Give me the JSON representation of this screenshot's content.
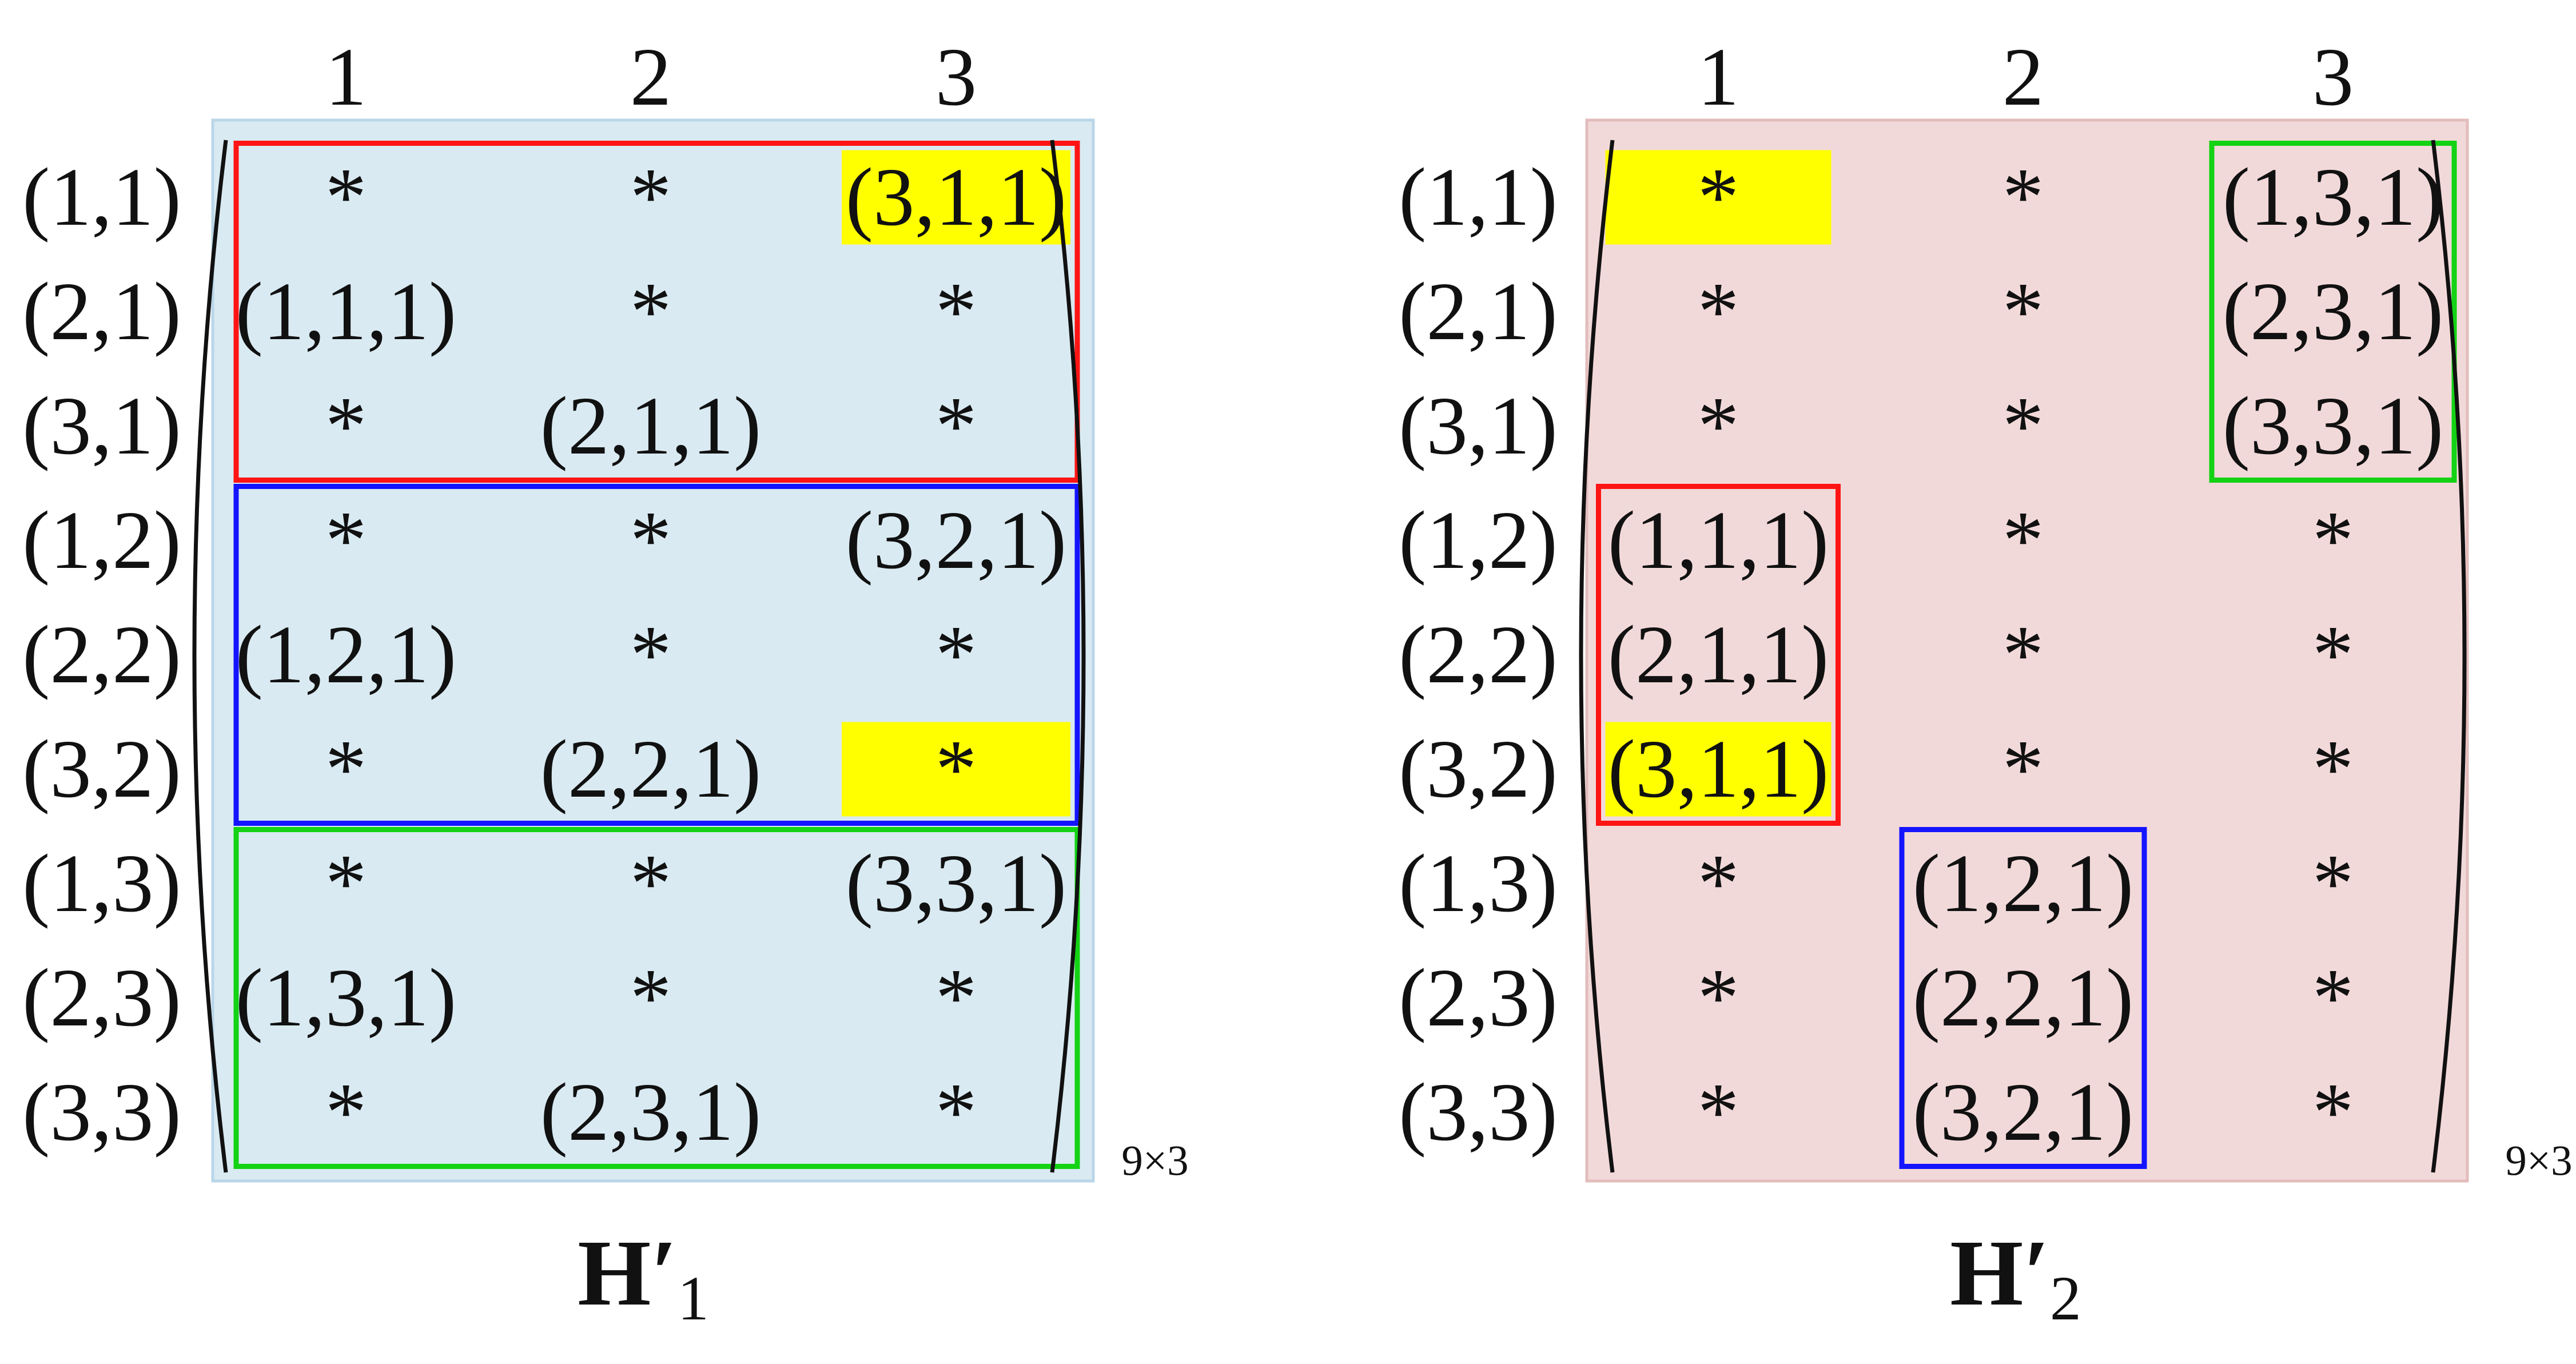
{
  "colors": {
    "panel1_bg": "#d9eaf2",
    "panel1_border": "#b9d6e8",
    "panel2_bg": "#f2d9d9",
    "panel2_border": "#e3bcbc",
    "highlight": "#ffff00",
    "red": "#ff1414",
    "blue": "#1414ff",
    "green": "#14d214",
    "text": "#111111"
  },
  "row_labels": [
    "(1,1)",
    "(2,1)",
    "(3,1)",
    "(1,2)",
    "(2,2)",
    "(3,2)",
    "(1,3)",
    "(2,3)",
    "(3,3)"
  ],
  "col_labels": [
    "1",
    "2",
    "3"
  ],
  "size_label": "9×3",
  "matrices": [
    {
      "id": "h1",
      "title_main": "H′",
      "title_sub": "1",
      "cells": [
        [
          "*",
          "*",
          "(3,1,1)"
        ],
        [
          "(1,1,1)",
          "*",
          "*"
        ],
        [
          "*",
          "(2,1,1)",
          "*"
        ],
        [
          "*",
          "*",
          "(3,2,1)"
        ],
        [
          "(1,2,1)",
          "*",
          "*"
        ],
        [
          "*",
          "(2,2,1)",
          "*"
        ],
        [
          "*",
          "*",
          "(3,3,1)"
        ],
        [
          "(1,3,1)",
          "*",
          "*"
        ],
        [
          "*",
          "(2,3,1)",
          "*"
        ]
      ],
      "highlights": [
        [
          0,
          2
        ],
        [
          5,
          2
        ]
      ],
      "groups": [
        {
          "color": "red",
          "rows": [
            0,
            2
          ],
          "cols": [
            0,
            2
          ]
        },
        {
          "color": "blue",
          "rows": [
            3,
            5
          ],
          "cols": [
            0,
            2
          ]
        },
        {
          "color": "green",
          "rows": [
            6,
            8
          ],
          "cols": [
            0,
            2
          ]
        }
      ]
    },
    {
      "id": "h2",
      "title_main": "H′",
      "title_sub": "2",
      "cells": [
        [
          "*",
          "*",
          "(1,3,1)"
        ],
        [
          "*",
          "*",
          "(2,3,1)"
        ],
        [
          "*",
          "*",
          "(3,3,1)"
        ],
        [
          "(1,1,1)",
          "*",
          "*"
        ],
        [
          "(2,1,1)",
          "*",
          "*"
        ],
        [
          "(3,1,1)",
          "*",
          "*"
        ],
        [
          "*",
          "(1,2,1)",
          "*"
        ],
        [
          "*",
          "(2,2,1)",
          "*"
        ],
        [
          "*",
          "(3,2,1)",
          "*"
        ]
      ],
      "highlights": [
        [
          0,
          0
        ],
        [
          5,
          0
        ]
      ],
      "groups": [
        {
          "color": "green",
          "rows": [
            0,
            2
          ],
          "cols": [
            2,
            2
          ]
        },
        {
          "color": "red",
          "rows": [
            3,
            5
          ],
          "cols": [
            0,
            0
          ]
        },
        {
          "color": "blue",
          "rows": [
            6,
            8
          ],
          "cols": [
            1,
            1
          ]
        }
      ]
    }
  ]
}
